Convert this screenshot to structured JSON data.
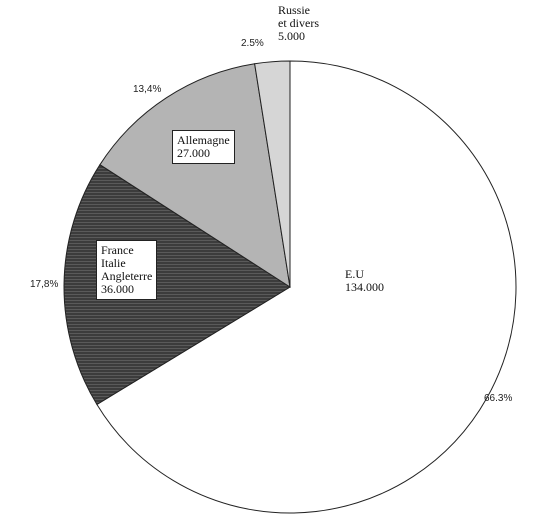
{
  "chart_data": {
    "type": "pie",
    "categories": [
      "E.U",
      "France\nItalie\nAngleterre",
      "Allemagne",
      "Russie\net divers"
    ],
    "values": [
      66.3,
      17.8,
      13.4,
      2.5
    ],
    "value_labels": [
      "66.3%",
      "17,8%",
      "13,4%",
      "2.5%"
    ],
    "amounts": [
      134000,
      36000,
      27000,
      5000
    ],
    "amount_labels": [
      "134.000",
      "36.000",
      "27.000",
      "5.000"
    ],
    "colors": [
      "#ffffff",
      "#3c3c3c",
      "#b4b4b4",
      "#d6d6d6"
    ]
  }
}
